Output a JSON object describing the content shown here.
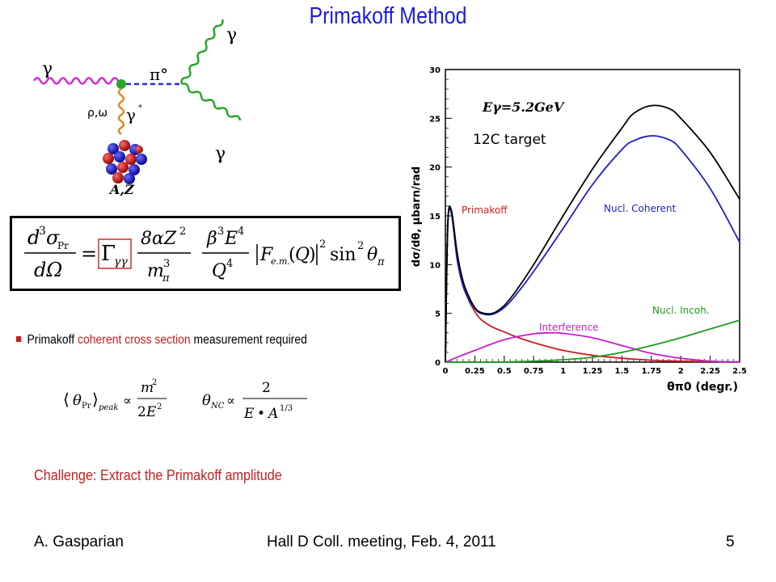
{
  "slide": {
    "title": "Primakoff Method",
    "diagram": {
      "gamma_in": "γ",
      "pi0": "π°",
      "gamma_out_top": "γ",
      "gamma_out_bottom": "γ",
      "rho_omega": "ρ,ω",
      "virtual_gamma": "γ",
      "nucleus": "A,Z"
    },
    "bullet": {
      "prefix": "Primakoff ",
      "highlight": "coherent cross section",
      "suffix": " measurement required"
    },
    "challenge": "Challenge:  Extract the Primakoff amplitude",
    "footer": {
      "author": "A. Gasparian",
      "event": "Hall D Coll. meeting, Feb. 4, 2011",
      "page": "5"
    }
  },
  "colors": {
    "title": "#1c1cd6",
    "highlight": "#c81e1e",
    "primakoff": "#cc1e1e",
    "coherent": "#1e1ec8",
    "incoherent": "#1e9b1e",
    "interference": "#c81ec8",
    "total": "#000000"
  },
  "chart_data": {
    "type": "line",
    "annotation_beam": "Eγ=5.2GeV",
    "annotation_target": "12C target",
    "ylabel": "dσ/dθ, μbarn/rad",
    "xlabel": "θπ0 (degr.)",
    "xlim": [
      0,
      2.5
    ],
    "ylim": [
      0,
      30
    ],
    "x_ticks": [
      "0",
      "0.25",
      "0.5",
      "0.75",
      "1",
      "1.25",
      "1.5",
      "1.75",
      "2",
      "2.25",
      "2.5"
    ],
    "y_ticks": [
      "0",
      "5",
      "10",
      "15",
      "20",
      "25",
      "30"
    ],
    "series": [
      {
        "name": "Primakoff",
        "color": "#cc1e1e",
        "x": [
          0,
          0.02,
          0.05,
          0.1,
          0.15,
          0.2,
          0.25,
          0.3,
          0.4,
          0.5,
          0.6,
          0.75,
          0.9,
          1.0,
          1.25,
          1.5,
          1.75,
          2.0,
          2.25,
          2.5
        ],
        "y": [
          0,
          14,
          15.5,
          11,
          8,
          6.3,
          5.2,
          4.4,
          3.6,
          3.1,
          2.6,
          2.0,
          1.5,
          1.2,
          0.7,
          0.4,
          0.2,
          0.1,
          0.05,
          0.02
        ]
      },
      {
        "name": "Nucl. Coherent",
        "color": "#1e1ec8",
        "x": [
          0,
          0.02,
          0.05,
          0.1,
          0.15,
          0.2,
          0.25,
          0.3,
          0.4,
          0.5,
          0.6,
          0.75,
          1.0,
          1.25,
          1.5,
          1.6,
          1.75,
          1.9,
          2.0,
          2.25,
          2.5
        ],
        "y": [
          0,
          14,
          15.3,
          10.5,
          7.8,
          6.4,
          5.5,
          5.0,
          4.9,
          5.6,
          6.9,
          9.3,
          13.7,
          18.2,
          21.8,
          22.7,
          23.2,
          22.8,
          21.8,
          17.8,
          12.3
        ]
      },
      {
        "name": "Total",
        "color": "#000000",
        "x": [
          0,
          0.02,
          0.05,
          0.1,
          0.15,
          0.2,
          0.25,
          0.3,
          0.4,
          0.5,
          0.6,
          0.75,
          1.0,
          1.25,
          1.5,
          1.6,
          1.75,
          1.9,
          2.0,
          2.25,
          2.5
        ],
        "y": [
          0,
          14,
          15.6,
          11.2,
          8.3,
          6.7,
          5.6,
          5.1,
          5.0,
          5.8,
          7.3,
          10.0,
          15.0,
          19.8,
          24.0,
          25.5,
          26.3,
          26.0,
          25.0,
          21.5,
          16.7
        ]
      },
      {
        "name": "Interference",
        "color": "#c81ec8",
        "x": [
          0,
          0.1,
          0.25,
          0.5,
          0.75,
          0.9,
          1.0,
          1.25,
          1.5,
          1.75,
          2.0,
          2.25,
          2.5
        ],
        "y": [
          0,
          0.5,
          1.2,
          2.3,
          2.9,
          3.0,
          2.95,
          2.5,
          1.7,
          0.9,
          0.4,
          0.1,
          0
        ]
      },
      {
        "name": "Nucl. Incoh.",
        "color": "#1e9b1e",
        "x": [
          0,
          0.25,
          0.5,
          0.75,
          1.0,
          1.25,
          1.5,
          1.75,
          2.0,
          2.25,
          2.5
        ],
        "y": [
          0,
          0,
          0.02,
          0.1,
          0.25,
          0.5,
          1.0,
          1.7,
          2.5,
          3.4,
          4.3
        ]
      }
    ]
  }
}
